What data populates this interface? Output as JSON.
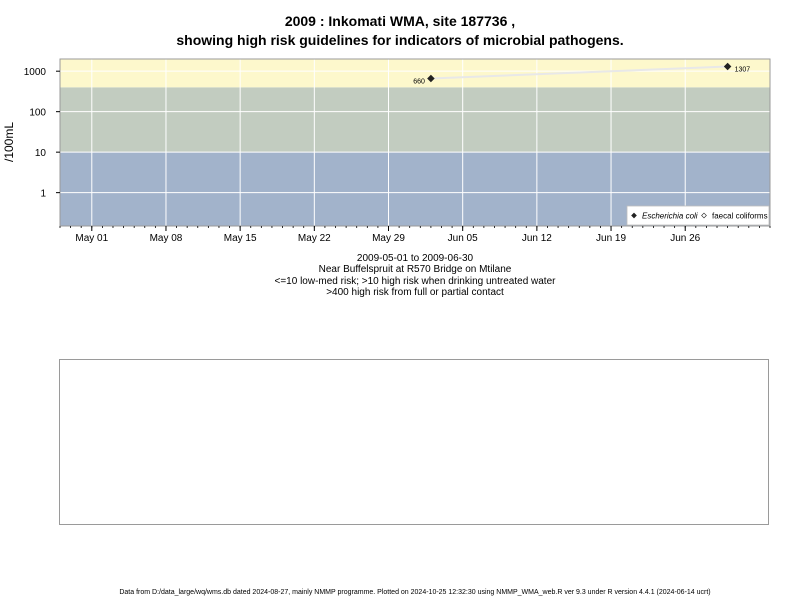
{
  "titles": {
    "line1": "2009 : Inkomati WMA, site 187736 ,",
    "line2": "showing high risk guidelines for indicators of microbial pathogens."
  },
  "captions": {
    "date_range": "2009-05-01 to 2009-06-30",
    "location": "Near Buffelspruit at R570 Bridge on Mtilane",
    "risk_low": "<=10 low-med risk; >10 high risk when drinking untreated water",
    "risk_high": ">400 high risk from full or partial contact"
  },
  "footer": "Data from D:/data_large/wq/wms.db dated 2024-08-27, mainly NMMP programme. Plotted on 2024-10-25 12:32:30 using NMMP_WMA_web.R ver 9.3 under R version 4.4.1 (2024-06-14 ucrt)",
  "colors": {
    "band_low": "#a2b3cb",
    "band_mid": "#c2ccc0",
    "band_high": "#fdf8cc",
    "grid": "#ffffff",
    "ecoli_point": "#222222",
    "faecal_point": "#ffffff",
    "connector": "#e8e8e8"
  },
  "chart_data": {
    "type": "scatter",
    "ylabel": "/100mL",
    "y_scale": "log",
    "y_ticks": [
      1,
      10,
      100,
      1000
    ],
    "y_tick_labels": [
      "1",
      "10",
      "100",
      "1000"
    ],
    "ylim": [
      0.15,
      2000
    ],
    "xlim": [
      "2009-04-28",
      "2009-07-04"
    ],
    "x_ticks": [
      "2009-05-01",
      "2009-05-08",
      "2009-05-15",
      "2009-05-22",
      "2009-05-29",
      "2009-06-05",
      "2009-06-12",
      "2009-06-19",
      "2009-06-26"
    ],
    "x_tick_labels": [
      "May 01",
      "May 08",
      "May 15",
      "May 22",
      "May 29",
      "Jun 05",
      "Jun 12",
      "Jun 19",
      "Jun 26"
    ],
    "risk_thresholds": [
      10,
      400
    ],
    "grid": true,
    "legend_position": "bottom-right",
    "series": [
      {
        "name": "Escherichia coli",
        "marker": "filled-diamond",
        "points": [
          {
            "x": "2009-06-02",
            "y": 660,
            "label": "660"
          },
          {
            "x": "2009-06-30",
            "y": 1307,
            "label": "1307"
          }
        ]
      },
      {
        "name": "faecal coliforms",
        "marker": "open-diamond",
        "points": []
      }
    ]
  }
}
